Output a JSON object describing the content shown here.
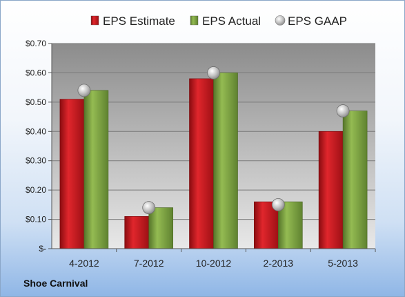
{
  "company": "Shoe Carnival",
  "colors": {
    "estimate": "#c8161d",
    "actual": "#7da33c",
    "gaap": "#b8b8b8"
  },
  "chart_data": {
    "type": "bar",
    "title": "",
    "xlabel": "",
    "ylabel": "",
    "categories": [
      "4-2012",
      "7-2012",
      "10-2012",
      "2-2013",
      "5-2013"
    ],
    "series": [
      {
        "name": "EPS Estimate",
        "kind": "bar",
        "values": [
          0.51,
          0.11,
          0.58,
          0.16,
          0.4
        ]
      },
      {
        "name": "EPS Actual",
        "kind": "bar",
        "values": [
          0.54,
          0.14,
          0.6,
          0.16,
          0.47
        ]
      },
      {
        "name": "EPS GAAP",
        "kind": "marker",
        "values": [
          0.54,
          0.14,
          0.6,
          0.15,
          0.47
        ]
      }
    ],
    "ylim": [
      0,
      0.7
    ],
    "yticks": [
      0,
      0.1,
      0.2,
      0.3,
      0.4,
      0.5,
      0.6,
      0.7
    ],
    "ytick_labels": [
      "$-",
      "$0.10",
      "$0.20",
      "$0.30",
      "$0.40",
      "$0.50",
      "$0.60",
      "$0.70"
    ],
    "grid": true,
    "legend_position": "top"
  }
}
